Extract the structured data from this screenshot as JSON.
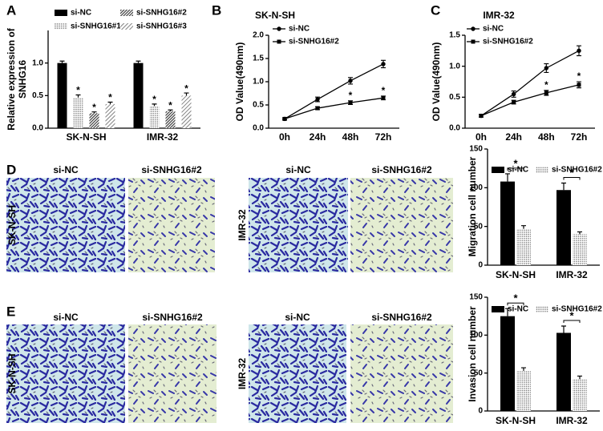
{
  "chart_data": [
    {
      "type": "bar",
      "panel": "A",
      "ylabel": [
        "Relative expression of",
        "SNHG16"
      ],
      "categories": [
        "SK-N-SH",
        "IMR-32"
      ],
      "series": [
        {
          "name": "si-NC",
          "color": "#000000",
          "pattern": "solid",
          "values": [
            1.0,
            1.0
          ],
          "errors": [
            0.03,
            0.03
          ],
          "annotations": [
            null,
            null
          ]
        },
        {
          "name": "si-SNHG16#1",
          "color": "#777777",
          "pattern": "dots",
          "values": [
            0.47,
            0.34
          ],
          "errors": [
            0.04,
            0.03
          ],
          "annotations": [
            "*",
            "*"
          ]
        },
        {
          "name": "si-SNHG16#2",
          "color": "#333333",
          "pattern": "hatch-dense",
          "values": [
            0.23,
            0.26
          ],
          "errors": [
            0.02,
            0.02
          ],
          "annotations": [
            "*",
            "*"
          ]
        },
        {
          "name": "si-SNHG16#3",
          "color": "#555555",
          "pattern": "hatch",
          "values": [
            0.37,
            0.5
          ],
          "errors": [
            0.03,
            0.04
          ],
          "annotations": [
            "*",
            "*"
          ]
        }
      ],
      "ylim": [
        0,
        1.5
      ],
      "yticks": [
        {
          "value": 0,
          "label": "0.0"
        },
        {
          "value": 0.5,
          "label": "0.5"
        },
        {
          "value": 1,
          "label": "1.0"
        }
      ]
    },
    {
      "type": "line",
      "panel": "B",
      "title": "SK-N-SH",
      "ylabel": [
        "OD Value(490nm)"
      ],
      "categories": [
        "0h",
        "24h",
        "48h",
        "72h"
      ],
      "series": [
        {
          "name": "si-NC",
          "color": "#000000",
          "marker": "circle",
          "values": [
            0.2,
            0.62,
            1.02,
            1.38
          ],
          "errors": [
            0.02,
            0.05,
            0.07,
            0.08
          ],
          "annotations": [
            null,
            null,
            null,
            null
          ]
        },
        {
          "name": "si-SNHG16#2",
          "color": "#000000",
          "marker": "square",
          "values": [
            0.2,
            0.43,
            0.55,
            0.65
          ],
          "errors": [
            0.02,
            0.03,
            0.04,
            0.04
          ],
          "annotations": [
            null,
            null,
            "*",
            "*"
          ]
        }
      ],
      "ylim": [
        0,
        2
      ],
      "yticks": [
        {
          "value": 0,
          "label": "0.0"
        },
        {
          "value": 0.5,
          "label": "0.5"
        },
        {
          "value": 1,
          "label": "1.0"
        },
        {
          "value": 1.5,
          "label": "1.5"
        },
        {
          "value": 2,
          "label": "2.0"
        }
      ]
    },
    {
      "type": "line",
      "panel": "C",
      "title": "IMR-32",
      "ylabel": [
        "OD Value(490nm)"
      ],
      "categories": [
        "0h",
        "24h",
        "48h",
        "72h"
      ],
      "series": [
        {
          "name": "si-NC",
          "color": "#000000",
          "marker": "circle",
          "values": [
            0.2,
            0.55,
            0.97,
            1.25
          ],
          "errors": [
            0.02,
            0.05,
            0.07,
            0.08
          ],
          "annotations": [
            null,
            null,
            null,
            null
          ]
        },
        {
          "name": "si-SNHG16#2",
          "color": "#000000",
          "marker": "square",
          "values": [
            0.2,
            0.42,
            0.57,
            0.7
          ],
          "errors": [
            0.02,
            0.03,
            0.04,
            0.05
          ],
          "annotations": [
            null,
            null,
            "*",
            "*"
          ]
        }
      ],
      "ylim": [
        0,
        1.5
      ],
      "yticks": [
        {
          "value": 0,
          "label": "0.0"
        },
        {
          "value": 0.5,
          "label": "0.5"
        },
        {
          "value": 1,
          "label": "1.0"
        },
        {
          "value": 1.5,
          "label": "1.5"
        }
      ]
    },
    {
      "type": "bar",
      "ylabel": [
        "Migration cell number"
      ],
      "categories": [
        "SK-N-SH",
        "IMR-32"
      ],
      "series": [
        {
          "name": "si-NC",
          "color": "#000000",
          "pattern": "solid",
          "values": [
            108,
            97
          ],
          "errors": [
            10,
            9
          ]
        },
        {
          "name": "si-SNHG16#2",
          "color": "#777777",
          "pattern": "dots",
          "values": [
            47,
            40
          ],
          "errors": [
            4,
            3
          ]
        }
      ],
      "comparisons": [
        "*",
        "*"
      ],
      "ylim": [
        0,
        150
      ],
      "yticks": [
        0,
        50,
        100,
        150
      ]
    },
    {
      "type": "bar",
      "ylabel": [
        "Invasion cell number"
      ],
      "categories": [
        "SK-N-SH",
        "IMR-32"
      ],
      "series": [
        {
          "name": "si-NC",
          "color": "#000000",
          "pattern": "solid",
          "values": [
            125,
            103
          ],
          "errors": [
            10,
            9
          ]
        },
        {
          "name": "si-SNHG16#2",
          "color": "#777777",
          "pattern": "dots",
          "values": [
            53,
            42
          ],
          "errors": [
            4,
            4
          ]
        }
      ],
      "comparisons": [
        "*",
        "*"
      ],
      "ylim": [
        0,
        150
      ],
      "yticks": [
        0,
        50,
        100,
        150
      ]
    }
  ],
  "micrographs": [
    {
      "panel": "D",
      "groups": [
        {
          "row_label": "SK-N-SH",
          "columns": [
            "si-NC",
            "si-SNHG16#2"
          ]
        },
        {
          "row_label": "IMR-32",
          "columns": [
            "si-NC",
            "si-SNHG16#2"
          ]
        }
      ]
    },
    {
      "panel": "E",
      "groups": [
        {
          "row_label": "SK-N-SH",
          "columns": [
            "si-NC",
            "si-SNHG16#2"
          ]
        },
        {
          "row_label": "IMR-32",
          "columns": [
            "si-NC",
            "si-SNHG16#2"
          ]
        }
      ]
    }
  ]
}
